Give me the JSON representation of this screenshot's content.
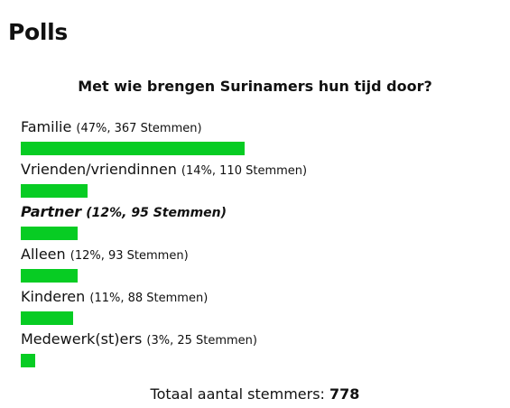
{
  "widget": {
    "title": "Polls"
  },
  "poll": {
    "question": "Met wie brengen Surinamers hun tijd door?",
    "accent_color": "#07cc23",
    "options": [
      {
        "label": "Familie",
        "meta": "(47%, 367 Stemmen)",
        "percent": 47,
        "votes": 367,
        "selected": false
      },
      {
        "label": "Vrienden/vriendinnen",
        "meta": "(14%, 110 Stemmen)",
        "percent": 14,
        "votes": 110,
        "selected": false
      },
      {
        "label": "Partner",
        "meta": "(12%, 95 Stemmen)",
        "percent": 12,
        "votes": 95,
        "selected": true
      },
      {
        "label": "Alleen",
        "meta": "(12%, 93 Stemmen)",
        "percent": 12,
        "votes": 93,
        "selected": false
      },
      {
        "label": "Kinderen",
        "meta": "(11%, 88 Stemmen)",
        "percent": 11,
        "votes": 88,
        "selected": false
      },
      {
        "label": "Medewerk(st)ers",
        "meta": "(3%, 25 Stemmen)",
        "percent": 3,
        "votes": 25,
        "selected": false
      }
    ],
    "total_label": "Totaal aantal stemmers:",
    "total_count": "778"
  }
}
